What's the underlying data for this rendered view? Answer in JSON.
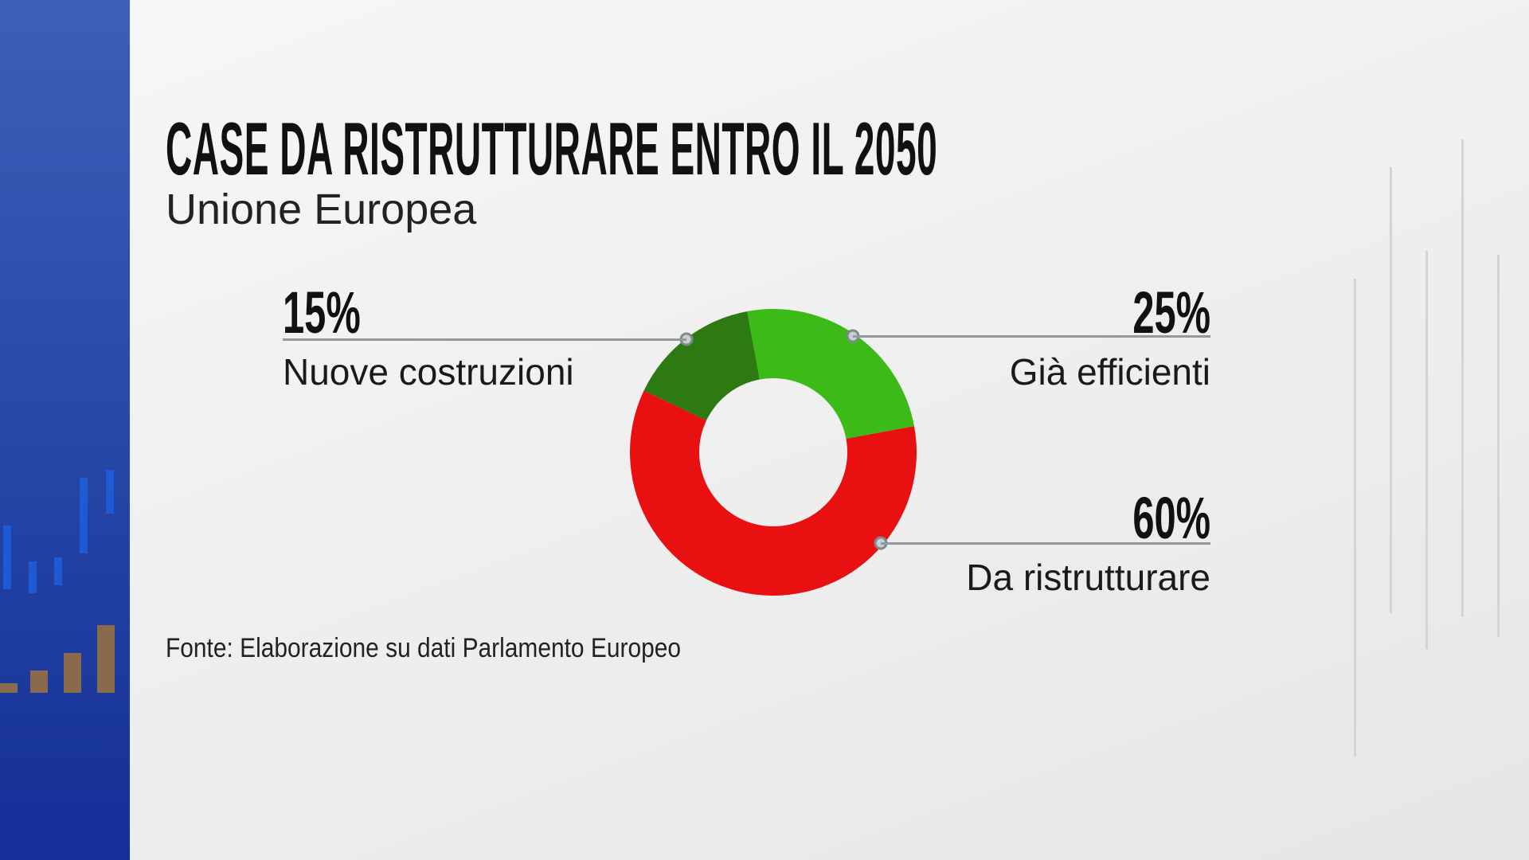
{
  "header": {
    "title": "CASE DA RISTRUTTURARE ENTRO IL 2050",
    "subtitle": "Unione Europea"
  },
  "chart_data": {
    "type": "pie",
    "donut": true,
    "title": "CASE DA RISTRUTTURARE ENTRO IL 2050",
    "subtitle": "Unione Europea",
    "slices": [
      {
        "label": "Nuove costruzioni",
        "value": 15,
        "display": "15%",
        "color": "#2d7a12"
      },
      {
        "label": "Già efficienti",
        "value": 25,
        "display": "25%",
        "color": "#3bba18"
      },
      {
        "label": "Da ristrutturare",
        "value": 60,
        "display": "60%",
        "color": "#e81010"
      }
    ],
    "source": "Fonte: Elaborazione su dati Parlamento Europeo"
  },
  "colors": {
    "sidebar": "#2a4aa8",
    "leader_line": "#8e9a9c"
  }
}
